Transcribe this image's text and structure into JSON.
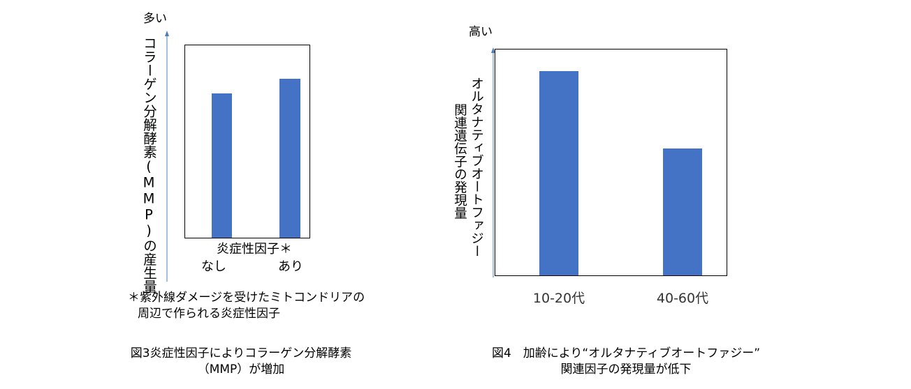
{
  "chart_data": [
    {
      "type": "bar",
      "y_top_label": "多い",
      "ylabel": "コラーゲン分解酵素(MMP)の産生量",
      "xlabel": "炎症性因子＊",
      "categories": [
        "なし",
        "あり"
      ],
      "values": [
        60,
        66
      ],
      "ylim": [
        0,
        80
      ],
      "bar_color": "#4472c4",
      "footnote_lines": [
        "＊紫外線ダメージを受けたミトコンドリアの",
        "周辺で作られる炎症性因子"
      ],
      "caption_lines": [
        "図3炎症性因子によりコラーゲン分解酵素",
        "（MMP）が増加"
      ]
    },
    {
      "type": "bar",
      "y_top_label": "高い",
      "ylabel_lines": [
        "オルタナティブオートファジー",
        "関連遺伝子の発現量"
      ],
      "categories": [
        "10-20代",
        "40-60代"
      ],
      "values": [
        95,
        59
      ],
      "ylim": [
        0,
        105
      ],
      "bar_color": "#4472c4",
      "caption_lines": [
        "図4　加齢により“オルタナティブオートファジー”",
        "関連因子の発現量が低下"
      ]
    }
  ]
}
